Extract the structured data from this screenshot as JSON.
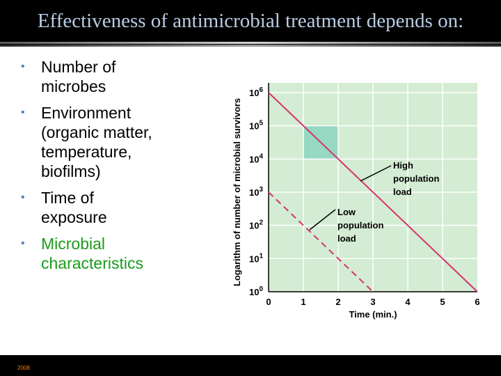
{
  "slide": {
    "title": "Effectiveness of antimicrobial treatment depends on:",
    "footer": "2008"
  },
  "bullets": [
    {
      "lines": [
        "Number of",
        "microbes"
      ],
      "accent": false
    },
    {
      "lines": [
        "Environment",
        "(organic matter,",
        "temperature,",
        "biofilms)"
      ],
      "accent": false
    },
    {
      "lines": [
        "Time of",
        "exposure"
      ],
      "accent": false
    },
    {
      "lines": [
        "Microbial",
        "characteristics"
      ],
      "accent": true
    }
  ],
  "chart_data": {
    "type": "line",
    "xlabel": "Time (min.)",
    "ylabel": "Logarithm of number of microbial survivors",
    "x_ticks": [
      "0",
      "1",
      "2",
      "3",
      "4",
      "5",
      "6"
    ],
    "y_ticks": [
      {
        "base": "10",
        "exp": "0"
      },
      {
        "base": "10",
        "exp": "1"
      },
      {
        "base": "10",
        "exp": "2"
      },
      {
        "base": "10",
        "exp": "3"
      },
      {
        "base": "10",
        "exp": "4"
      },
      {
        "base": "10",
        "exp": "5"
      },
      {
        "base": "10",
        "exp": "6"
      }
    ],
    "xlim": [
      0,
      6
    ],
    "ylim_log10": [
      0,
      6
    ],
    "y_scale": "log",
    "grid": true,
    "series": [
      {
        "name": "High population load",
        "label_lines": [
          "High",
          "population",
          "load"
        ],
        "style": "solid",
        "x": [
          0,
          6
        ],
        "log10_y": [
          6,
          0
        ]
      },
      {
        "name": "Low population load",
        "label_lines": [
          "Low",
          "population",
          "load"
        ],
        "style": "dashed",
        "x": [
          0,
          3
        ],
        "log10_y": [
          3,
          0
        ]
      }
    ],
    "highlight": {
      "x_range": [
        1,
        2
      ],
      "log10_y_range": [
        4,
        5
      ]
    },
    "colors": {
      "plot_bg": "#d3ecd3",
      "highlight": "#96d8c2",
      "line": "#d6336c",
      "grid": "#ffffff",
      "axis": "#000000",
      "text": "#000000"
    }
  }
}
